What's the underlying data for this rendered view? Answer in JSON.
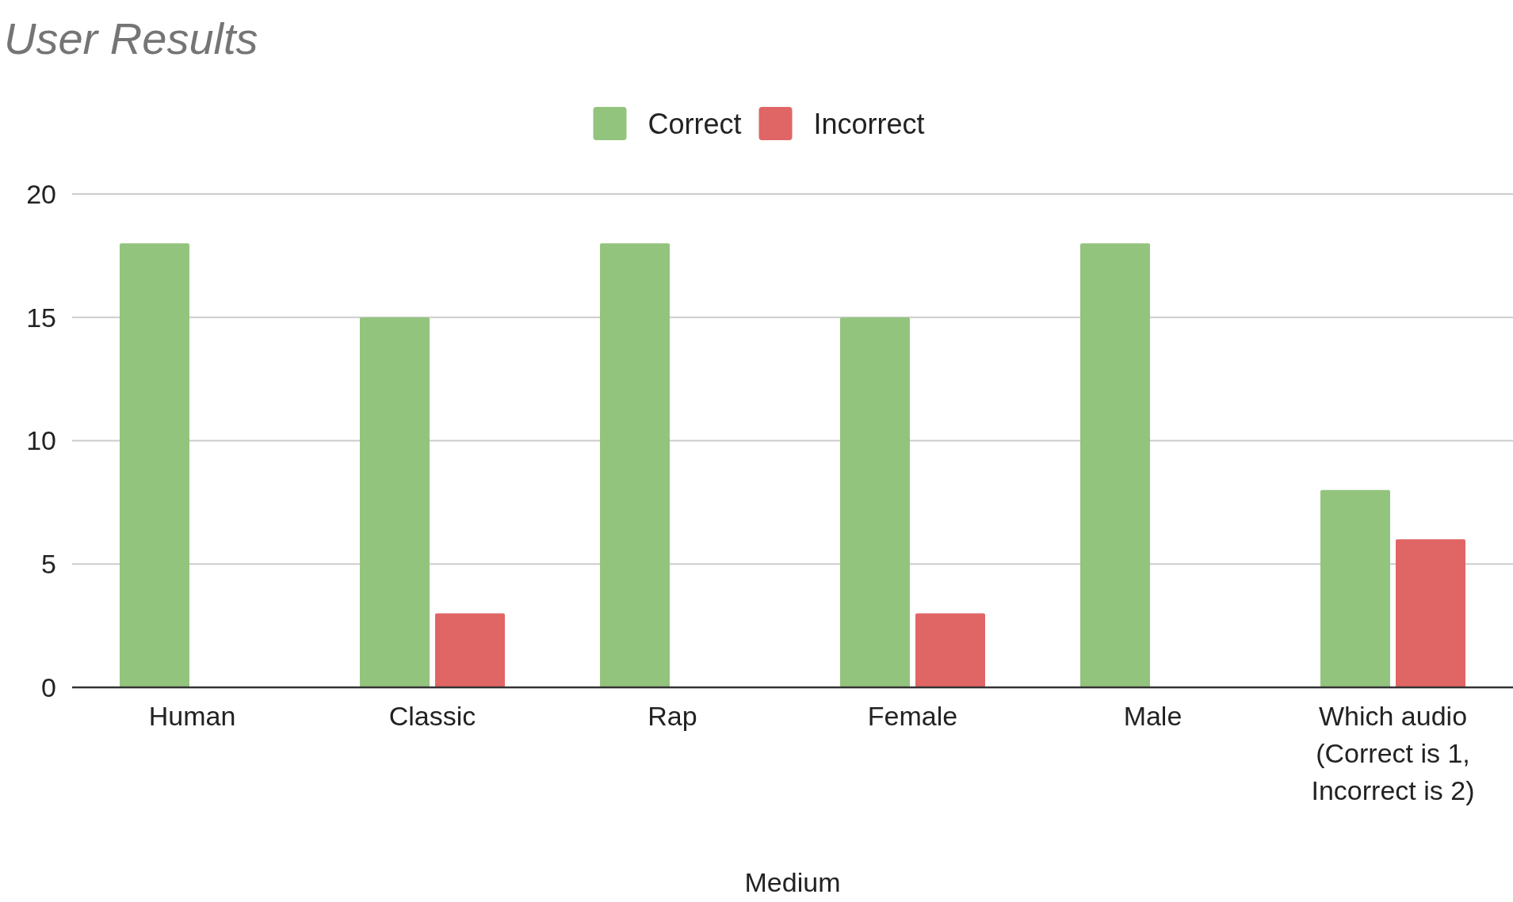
{
  "chart_data": {
    "type": "bar",
    "title": "User Results",
    "xlabel": "Medium",
    "categories": [
      "Human",
      "Classic",
      "Rap",
      "Female",
      "Male",
      "Which audio (Correct is 1, Incorrect is 2)"
    ],
    "series": [
      {
        "name": "Correct",
        "color": "#93c47d",
        "values": [
          18,
          15,
          18,
          15,
          18,
          8
        ]
      },
      {
        "name": "Incorrect",
        "color": "#e06666",
        "values": [
          null,
          3,
          null,
          3,
          null,
          6
        ]
      }
    ],
    "ylim": [
      0,
      20
    ],
    "yticks": [
      0,
      5,
      10,
      15,
      20
    ],
    "grid": "y",
    "legend": "top"
  }
}
